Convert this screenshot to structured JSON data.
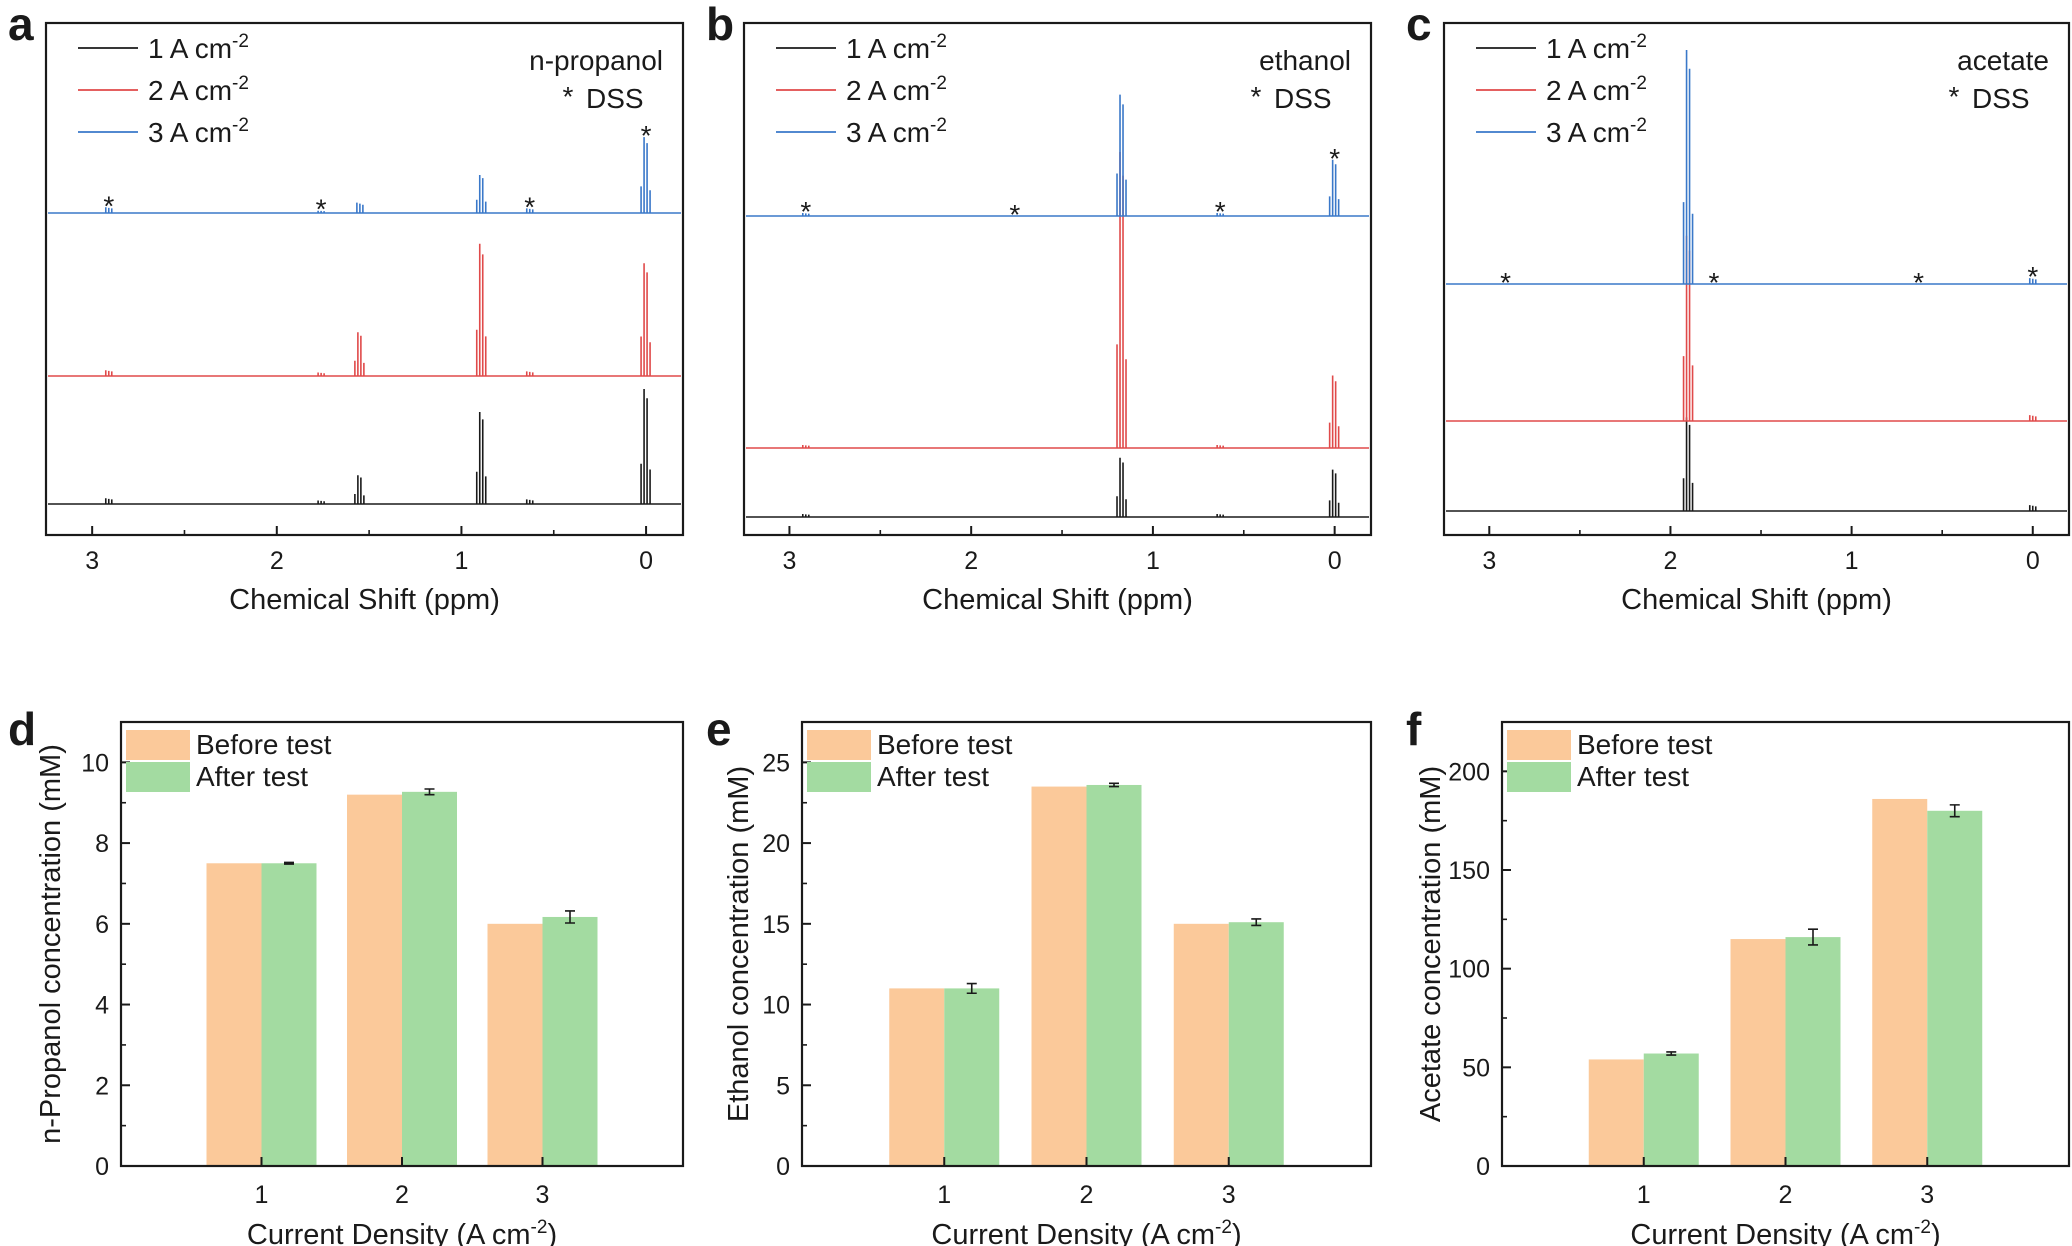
{
  "colors": {
    "black": "#1a1a1a",
    "red": "#e04a4a",
    "blue": "#3a78c9",
    "before_fill": "#fbc99a",
    "after_fill": "#a3dba1"
  },
  "chart_data": [
    {
      "panel": "a",
      "type": "line",
      "title": "",
      "xlabel": "Chemical Shift (ppm)",
      "ylabel": "",
      "xlim": [
        3.25,
        -0.2
      ],
      "x_ticks": [
        "3",
        "2",
        "1",
        "0"
      ],
      "legend": [
        "1 A cm",
        "2 A cm",
        "3 A cm"
      ],
      "legend_sup": "-2",
      "annotations": [
        "n-propanol",
        "*",
        "DSS"
      ],
      "star_positions_ppm": [
        2.91,
        1.76,
        0.63,
        0.0
      ],
      "series": [
        {
          "name": "1 A cm-2",
          "peaks": [
            {
              "ppm": 2.91,
              "h": 0.05
            },
            {
              "ppm": 1.55,
              "h": 0.25
            },
            {
              "ppm": 1.76,
              "h": 0.03
            },
            {
              "ppm": 0.89,
              "h": 0.8
            },
            {
              "ppm": 0.63,
              "h": 0.04
            },
            {
              "ppm": 0.0,
              "h": 1.0
            }
          ]
        },
        {
          "name": "2 A cm-2",
          "peaks": [
            {
              "ppm": 2.91,
              "h": 0.05
            },
            {
              "ppm": 1.55,
              "h": 0.38
            },
            {
              "ppm": 1.76,
              "h": 0.03
            },
            {
              "ppm": 0.89,
              "h": 1.15
            },
            {
              "ppm": 0.63,
              "h": 0.04
            },
            {
              "ppm": 0.0,
              "h": 0.98
            }
          ]
        },
        {
          "name": "3 A cm-2",
          "peaks": [
            {
              "ppm": 2.91,
              "h": 0.05
            },
            {
              "ppm": 1.55,
              "h": 0.09
            },
            {
              "ppm": 1.76,
              "h": 0.02
            },
            {
              "ppm": 0.89,
              "h": 0.33
            },
            {
              "ppm": 0.63,
              "h": 0.04
            },
            {
              "ppm": 0.0,
              "h": 0.66
            }
          ]
        }
      ]
    },
    {
      "panel": "b",
      "type": "line",
      "title": "",
      "xlabel": "Chemical Shift (ppm)",
      "ylabel": "",
      "xlim": [
        3.25,
        -0.2
      ],
      "x_ticks": [
        "3",
        "2",
        "1",
        "0"
      ],
      "legend": [
        "1 A cm",
        "2 A cm",
        "3 A cm"
      ],
      "legend_sup": "-2",
      "annotations": [
        "ethanol",
        "*",
        "DSS"
      ],
      "star_positions_ppm": [
        2.91,
        1.76,
        0.63,
        0.0
      ],
      "series": [
        {
          "name": "1 A cm-2",
          "peaks": [
            {
              "ppm": 2.91,
              "h": 0.02
            },
            {
              "ppm": 1.17,
              "h": 0.4
            },
            {
              "ppm": 0.63,
              "h": 0.02
            },
            {
              "ppm": 0.0,
              "h": 0.32
            }
          ]
        },
        {
          "name": "2 A cm-2",
          "peaks": [
            {
              "ppm": 2.91,
              "h": 0.02
            },
            {
              "ppm": 1.17,
              "h": 2.0
            },
            {
              "ppm": 0.63,
              "h": 0.02
            },
            {
              "ppm": 0.0,
              "h": 0.49
            }
          ]
        },
        {
          "name": "3 A cm-2",
          "peaks": [
            {
              "ppm": 2.91,
              "h": 0.02
            },
            {
              "ppm": 1.17,
              "h": 0.82
            },
            {
              "ppm": 0.63,
              "h": 0.02
            },
            {
              "ppm": 0.0,
              "h": 0.38
            }
          ]
        }
      ]
    },
    {
      "panel": "c",
      "type": "line",
      "title": "",
      "xlabel": "Chemical Shift (ppm)",
      "ylabel": "",
      "xlim": [
        3.25,
        -0.2
      ],
      "x_ticks": [
        "3",
        "2",
        "1",
        "0"
      ],
      "legend": [
        "1 A cm",
        "2 A cm",
        "3 A cm"
      ],
      "legend_sup": "-2",
      "annotations": [
        "acetate",
        "*",
        "DSS"
      ],
      "star_positions_ppm": [
        2.91,
        1.76,
        0.63,
        0.0
      ],
      "series": [
        {
          "name": "1 A cm-2",
          "peaks": [
            {
              "ppm": 1.9,
              "h": 0.48
            },
            {
              "ppm": 0.0,
              "h": 0.03
            }
          ]
        },
        {
          "name": "2 A cm-2",
          "peaks": [
            {
              "ppm": 1.9,
              "h": 0.95
            },
            {
              "ppm": 0.0,
              "h": 0.03
            }
          ]
        },
        {
          "name": "3 A cm-2",
          "peaks": [
            {
              "ppm": 1.9,
              "h": 1.2
            },
            {
              "ppm": 0.0,
              "h": 0.03
            }
          ]
        }
      ]
    },
    {
      "panel": "d",
      "type": "bar",
      "title": "",
      "xlabel": "Current Density (A cm",
      "xlabel_sup": "-2",
      "xlabel_end": ")",
      "ylabel": "n-Propanol concentration (mM)",
      "ylim": [
        0,
        11
      ],
      "yticks": [
        0,
        2,
        4,
        6,
        8,
        10
      ],
      "categories": [
        "1",
        "2",
        "3"
      ],
      "series": [
        {
          "name": "Before test",
          "values": [
            7.5,
            9.2,
            6.0
          ],
          "errors": [
            0,
            0,
            0
          ]
        },
        {
          "name": "After test",
          "values": [
            7.5,
            9.27,
            6.17
          ],
          "errors": [
            0.02,
            0.07,
            0.15
          ]
        }
      ]
    },
    {
      "panel": "e",
      "type": "bar",
      "title": "",
      "xlabel": "Current Density (A cm",
      "xlabel_sup": "-2",
      "xlabel_end": ")",
      "ylabel": "Ethanol concentration (mM)",
      "ylim": [
        0,
        27.5
      ],
      "yticks": [
        0,
        5,
        10,
        15,
        20,
        25
      ],
      "categories": [
        "1",
        "2",
        "3"
      ],
      "series": [
        {
          "name": "Before test",
          "values": [
            11.0,
            23.5,
            15.0
          ],
          "errors": [
            0,
            0,
            0
          ]
        },
        {
          "name": "After test",
          "values": [
            11.0,
            23.6,
            15.1
          ],
          "errors": [
            0.3,
            0.1,
            0.2
          ]
        }
      ]
    },
    {
      "panel": "f",
      "type": "bar",
      "title": "",
      "xlabel": "Current Density (A cm",
      "xlabel_sup": "-2",
      "xlabel_end": ")",
      "ylabel": "Acetate concentration (mM)",
      "ylim": [
        0,
        225
      ],
      "yticks": [
        0,
        50,
        100,
        150,
        200
      ],
      "categories": [
        "1",
        "2",
        "3"
      ],
      "series": [
        {
          "name": "Before test",
          "values": [
            54,
            115,
            186
          ],
          "errors": [
            0,
            0,
            0
          ]
        },
        {
          "name": "After test",
          "values": [
            57,
            116,
            180
          ],
          "errors": [
            0.8,
            4,
            3
          ]
        }
      ]
    }
  ]
}
